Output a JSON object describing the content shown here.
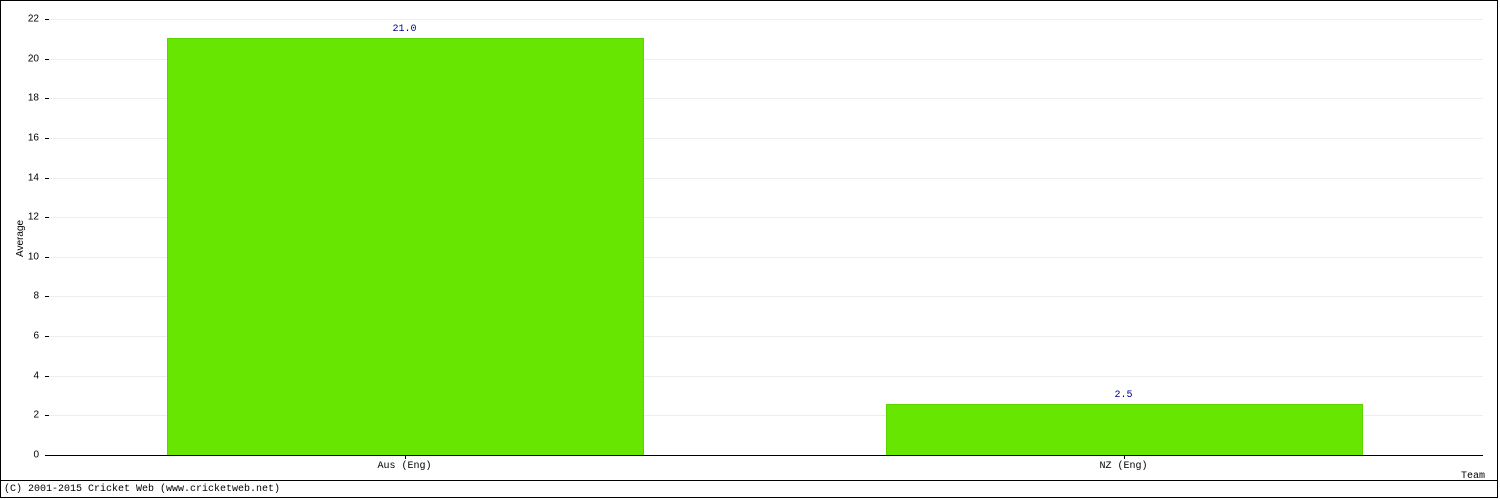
{
  "chart": {
    "type": "bar",
    "categories": [
      "Aus (Eng)",
      "NZ (Eng)"
    ],
    "values": [
      21.0,
      2.5
    ],
    "value_labels": [
      "21.0",
      "2.5"
    ],
    "bar_color": "#66e600",
    "bar_border_color": "#5cd400",
    "background_color": "#ffffff",
    "grid_color": "#eeeeee",
    "axis_color": "#000000",
    "value_label_color": "#00008b",
    "ylabel": "Average",
    "xlabel": "Team",
    "ylim_min": 0,
    "ylim_max": 22,
    "ytick_step": 2,
    "bar_width_ratio": 0.66,
    "tick_fontsize": 10,
    "label_fontsize": 10,
    "xtick_font": "monospace"
  },
  "copyright": "(C) 2001-2015 Cricket Web (www.cricketweb.net)"
}
